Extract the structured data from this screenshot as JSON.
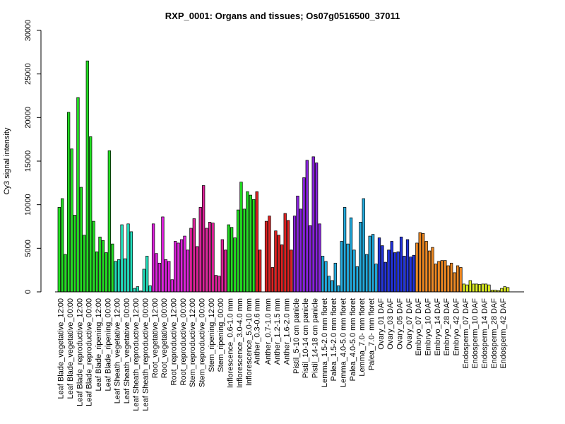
{
  "chart_data": {
    "type": "bar",
    "title": "RXP_0001: Organs and tissues; Os07g0516500_37011",
    "xlabel": "",
    "ylabel": "Cy3 signal intensity",
    "ylim": [
      0,
      30000
    ],
    "yticks": [
      0,
      5000,
      10000,
      15000,
      20000,
      25000,
      30000
    ],
    "grid": false,
    "legend": "none",
    "groups": [
      {
        "label": "Leaf Blade_vegetative_12:00",
        "color": "#22dd22",
        "values": [
          9700,
          10700,
          4300
        ]
      },
      {
        "label": "Leaf Blade_vegetative_00:00",
        "color": "#22dd22",
        "values": [
          20600,
          16400,
          8800
        ]
      },
      {
        "label": "Leaf Blade_reproductive_12:00",
        "color": "#22dd22",
        "values": [
          22300,
          12000,
          6500
        ]
      },
      {
        "label": "Leaf Blade_reproductive_00:00",
        "color": "#22dd22",
        "values": [
          26500,
          17800,
          8100
        ]
      },
      {
        "label": "Leaf Blade_ripening_12:00",
        "color": "#22dd22",
        "values": [
          4600,
          6300,
          5900
        ]
      },
      {
        "label": "Leaf Blade_ripening_00:00",
        "color": "#22dd22",
        "values": [
          4500,
          16200,
          5500
        ]
      },
      {
        "label": "Leaf Sheath_vegetative_12:00",
        "color": "#22ddbb",
        "values": [
          3500,
          3700,
          7700
        ]
      },
      {
        "label": "Leaf Sheath_vegetative_00:00",
        "color": "#22ddbb",
        "values": [
          3800,
          7800,
          6900
        ]
      },
      {
        "label": "Leaf Sheath_reproductive_12:00",
        "color": "#22ddbb",
        "values": [
          400,
          600,
          100
        ]
      },
      {
        "label": "Leaf Sheath_reproductive_00:00",
        "color": "#22ddbb",
        "values": [
          2600,
          4100,
          700
        ]
      },
      {
        "label": "Root_vegetative_12:00",
        "color": "#dd22dd",
        "values": [
          7800,
          4400,
          3300
        ]
      },
      {
        "label": "Root_vegetative_00:00",
        "color": "#dd22dd",
        "values": [
          8600,
          3700,
          3500
        ]
      },
      {
        "label": "Root_reproductive_12:00",
        "color": "#dd22dd",
        "values": [
          1400,
          5800,
          5600
        ]
      },
      {
        "label": "Root_reproductive_00:00",
        "color": "#dd22dd",
        "values": [
          6000,
          6400,
          4800
        ]
      },
      {
        "label": "Stem_reproductive_12:00",
        "color": "#dd2299",
        "values": [
          7300,
          8400,
          5200
        ]
      },
      {
        "label": "Stem_reproductive_00:00",
        "color": "#dd2299",
        "values": [
          9700,
          12200,
          7300
        ]
      },
      {
        "label": "Stem_ripening_12:00",
        "color": "#dd2299",
        "values": [
          8000,
          7900,
          1900
        ]
      },
      {
        "label": "Stem_ripening_00:00",
        "color": "#dd2299",
        "values": [
          1800,
          6000,
          4800
        ]
      },
      {
        "label": "Inflorescence_0.6-1.0 mm",
        "color": "#22dd22",
        "values": [
          7700,
          7400,
          6200
        ]
      },
      {
        "label": "Inflorescence_3.0-4.0 mm",
        "color": "#22dd22",
        "values": [
          9400,
          12600,
          9500
        ]
      },
      {
        "label": "Inflorescence_5.0-10 mm",
        "color": "#22dd22",
        "values": [
          11500,
          11100,
          10600
        ]
      },
      {
        "label": "Anther_0.3-0.6 mm",
        "color": "#dd2222",
        "values": [
          11500,
          4800
        ]
      },
      {
        "label": "Anther_0.7-1.0 mm",
        "color": "#dd2222",
        "values": [
          8100,
          8700,
          2800
        ]
      },
      {
        "label": "Anther_1.2-1.5 mm",
        "color": "#dd2222",
        "values": [
          7000,
          6500,
          5400
        ]
      },
      {
        "label": "Anther_1.6-2.0 mm",
        "color": "#dd2222",
        "values": [
          9000,
          8200,
          4800
        ]
      },
      {
        "label": "Pistil_5-10 cm panicle",
        "color": "#8822dd",
        "values": [
          8700,
          11000,
          9500
        ]
      },
      {
        "label": "Pistil_10-14 cm panicle",
        "color": "#8822dd",
        "values": [
          13100,
          15100,
          7600
        ]
      },
      {
        "label": "Pistil_14-18 cm panicle",
        "color": "#8822dd",
        "values": [
          15500,
          14800,
          7800
        ]
      },
      {
        "label": "Lemma_1.5-2.0 mm floret",
        "color": "#22aadd",
        "values": [
          4100,
          3500,
          1800
        ]
      },
      {
        "label": "Palea_1.5-2.0 mm floret",
        "color": "#22aadd",
        "values": [
          1300,
          3300,
          700
        ]
      },
      {
        "label": "Lemma_4.0-5.0 mm floret",
        "color": "#22aadd",
        "values": [
          5800,
          9700,
          5500
        ]
      },
      {
        "label": "Palea_4.0-5.0 mm floret",
        "color": "#22aadd",
        "values": [
          8500,
          4800,
          2900
        ]
      },
      {
        "label": "Lemma_7.0- mm floret",
        "color": "#22aadd",
        "values": [
          8000,
          10700,
          4300
        ]
      },
      {
        "label": "Palea_7.0- mm floret",
        "color": "#22aadd",
        "values": [
          6400,
          6600,
          3200
        ]
      },
      {
        "label": "Ovary_01 DAF",
        "color": "#2233dd",
        "values": [
          6200,
          5300,
          3400
        ]
      },
      {
        "label": "Ovary_03 DAF",
        "color": "#2233dd",
        "values": [
          4800,
          5800,
          4500
        ]
      },
      {
        "label": "Ovary_05 DAF",
        "color": "#2233dd",
        "values": [
          4600,
          6300,
          4100
        ]
      },
      {
        "label": "Ovary_07 DAF",
        "color": "#2233dd",
        "values": [
          6000,
          4000,
          4200
        ]
      },
      {
        "label": "Embryo_07 DAF",
        "color": "#ee8822",
        "values": [
          5600,
          6800,
          6700
        ]
      },
      {
        "label": "Embryo_10 DAF",
        "color": "#ee8822",
        "values": [
          5800,
          4700,
          5100
        ]
      },
      {
        "label": "Embryo_14 DAF",
        "color": "#ee8822",
        "values": [
          3200,
          3500,
          3600
        ]
      },
      {
        "label": "Embryo_28 DAF",
        "color": "#ee8822",
        "values": [
          3600,
          3000,
          3300
        ]
      },
      {
        "label": "Embryo_42 DAF",
        "color": "#ee8822",
        "values": [
          2200,
          3000,
          2800
        ]
      },
      {
        "label": "Endosperm_07 DAF",
        "color": "#ddee22",
        "values": [
          900,
          800,
          1300
        ]
      },
      {
        "label": "Endosperm_10 DAF",
        "color": "#ddee22",
        "values": [
          900,
          900,
          850
        ]
      },
      {
        "label": "Endosperm_14 DAF",
        "color": "#ddee22",
        "values": [
          900,
          900,
          800
        ]
      },
      {
        "label": "Endosperm_28 DAF",
        "color": "#ddee22",
        "values": [
          200,
          200,
          150
        ]
      },
      {
        "label": "Endosperm_42 DAF",
        "color": "#ddee22",
        "values": [
          400,
          600,
          500
        ]
      }
    ]
  }
}
